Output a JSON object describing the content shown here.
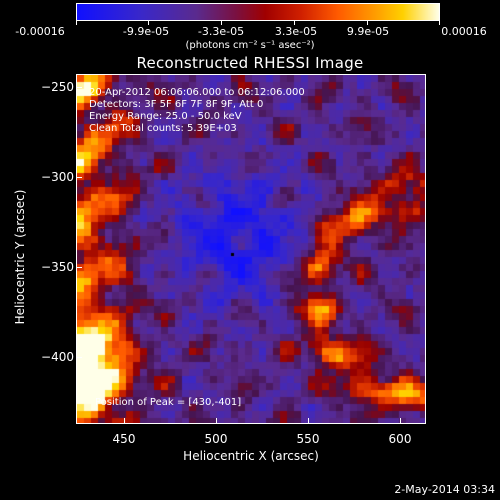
{
  "colorbar": {
    "ticks": [
      "-0.00016",
      "-9.9e-05",
      "-3.3e-05",
      "3.3e-05",
      "9.9e-05",
      "0.00016"
    ],
    "units": "(photons cm⁻² s⁻¹ asec⁻²)"
  },
  "plot": {
    "title": "Reconstructed RHESSI Image",
    "xlabel": "Heliocentric X (arcsec)",
    "ylabel": "Heliocentric Y (arcsec)",
    "xticks": [
      "450",
      "500",
      "550",
      "600"
    ],
    "yticks": [
      "−250",
      "−300",
      "−350",
      "−400"
    ],
    "overlay": {
      "line1": "20-Apr-2012 06:06:06.000 to 06:12:06.000",
      "line2": "Detectors: 3F 5F 6F 7F 8F 9F, Att 0",
      "line3": "Energy Range: 25.0 - 50.0 keV",
      "line4": "Clean     Total counts: 5.39E+03"
    },
    "peak": "Position of Peak = [430,-401]"
  },
  "footer": {
    "date": "2-May-2014 03:34"
  },
  "chart_data": {
    "type": "heatmap",
    "title": "Reconstructed RHESSI Image",
    "xlabel": "Heliocentric X (arcsec)",
    "ylabel": "Heliocentric Y (arcsec)",
    "xlim": [
      423,
      613
    ],
    "ylim": [
      -438,
      -243
    ],
    "colorbar_range": [
      -0.00016,
      0.00016
    ],
    "peak_position": [
      430,
      -401
    ]
  }
}
